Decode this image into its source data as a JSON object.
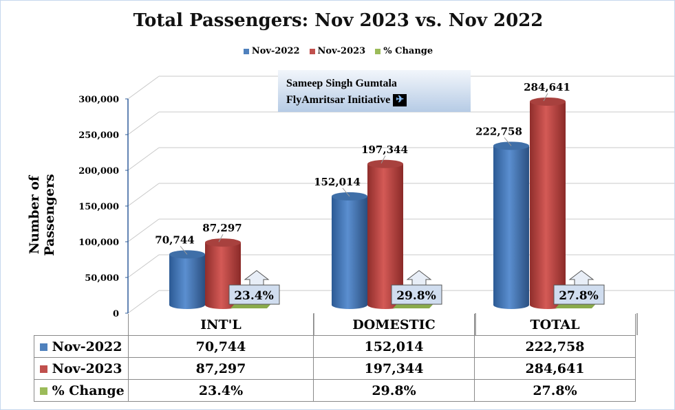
{
  "chart_data": {
    "type": "bar",
    "title": "Total Passengers: Nov 2023 vs. Nov 2022",
    "ylabel": "Number of Passengers",
    "xlabel": "",
    "ylim": [
      0,
      300000
    ],
    "yticks": [
      "0",
      "50,000",
      "100,000",
      "150,000",
      "200,000",
      "250,000",
      "300,000"
    ],
    "categories": [
      "INT'L",
      "DOMESTIC",
      "TOTAL"
    ],
    "series": [
      {
        "name": "Nov-2022",
        "color": "#4f81bd",
        "values": [
          70744,
          152014,
          222758
        ],
        "labels": [
          "70,744",
          "152,014",
          "222,758"
        ]
      },
      {
        "name": "Nov-2023",
        "color": "#c0504d",
        "values": [
          87297,
          197344,
          284641
        ],
        "labels": [
          "87,297",
          "197,344",
          "284,641"
        ]
      },
      {
        "name": "% Change",
        "color": "#9bbb59",
        "values": [
          23.4,
          29.8,
          27.8
        ],
        "labels": [
          "23.4%",
          "29.8%",
          "27.8%"
        ]
      }
    ],
    "legend_position": "top",
    "grid": true
  },
  "watermark": {
    "line1": "Sameep Singh Gumtala",
    "line2": "FlyAmritsar Initiative"
  }
}
